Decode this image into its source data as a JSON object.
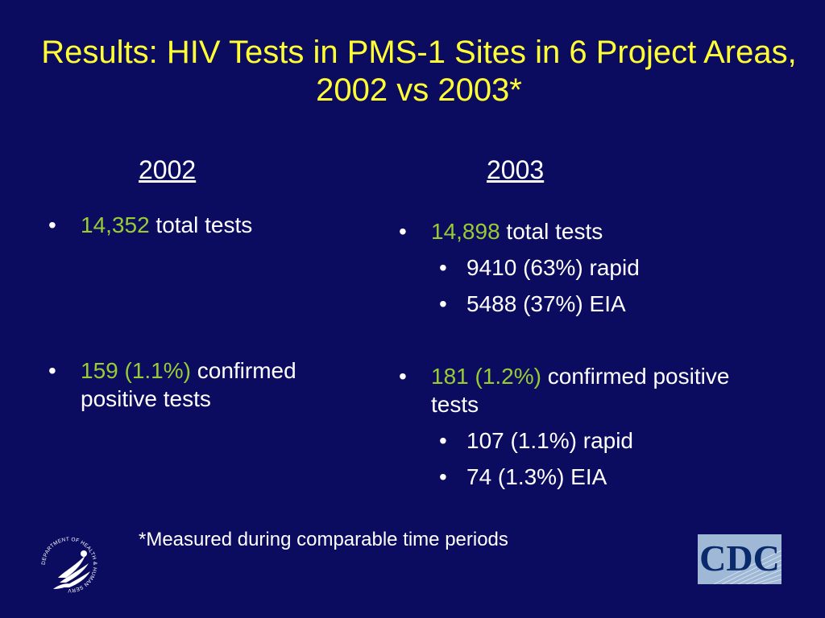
{
  "slide": {
    "title": "Results:  HIV Tests in PMS-1 Sites in 6 Project Areas, 2002 vs 2003*",
    "footnote": "*Measured during comparable time periods"
  },
  "col2002": {
    "heading": "2002",
    "bullet1": {
      "highlight": "14,352",
      "text": " total tests"
    },
    "bullet2": {
      "highlight": "159 (1.1%)",
      "text": " confirmed positive tests"
    }
  },
  "col2003": {
    "heading": "2003",
    "bullet1": {
      "highlight": "14,898",
      "text": " total tests",
      "sub": [
        "9410 (63%) rapid",
        "5488 (37%) EIA"
      ]
    },
    "bullet2": {
      "highlight": "181 (1.2%)",
      "text": " confirmed positive tests",
      "sub": [
        "107 (1.1%) rapid",
        "74 (1.3%) EIA"
      ]
    }
  },
  "logos": {
    "cdc": "CDC",
    "hhs_seal_text": "DEPARTMENT OF HEALTH & HUMAN SERVICES · USA"
  },
  "colors": {
    "background": "#0b0b60",
    "title": "#ffff33",
    "highlight": "#99cc33"
  }
}
